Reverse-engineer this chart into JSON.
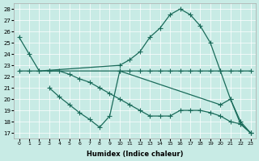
{
  "bg_color": "#c8ebe5",
  "line_color": "#1a6b5a",
  "xlabel": "Humidex (Indice chaleur)",
  "yticks": [
    17,
    18,
    19,
    20,
    21,
    22,
    23,
    24,
    25,
    26,
    27,
    28
  ],
  "xticks": [
    0,
    1,
    2,
    3,
    4,
    5,
    6,
    7,
    8,
    9,
    10,
    11,
    12,
    13,
    14,
    15,
    16,
    17,
    18,
    19,
    20,
    21,
    22,
    23
  ],
  "xlim": [
    -0.5,
    23.5
  ],
  "ylim": [
    16.5,
    28.5
  ],
  "line1_x": [
    0,
    1,
    2,
    10,
    11,
    12,
    13,
    14,
    15,
    16,
    17,
    18,
    19,
    20,
    21,
    22,
    23
  ],
  "line1_y": [
    25.5,
    24.0,
    22.5,
    23.0,
    23.5,
    24.2,
    25.5,
    26.3,
    27.5,
    28.0,
    27.5,
    26.5,
    25.0,
    22.5,
    22.5,
    22.5,
    22.5
  ],
  "line2_x": [
    0,
    1,
    2,
    3,
    10,
    11,
    12,
    13,
    14,
    15,
    16,
    17,
    18,
    19,
    20,
    21,
    22,
    23
  ],
  "line2_y": [
    22.5,
    22.5,
    22.5,
    22.5,
    22.5,
    22.5,
    22.5,
    22.5,
    22.5,
    22.5,
    22.5,
    22.5,
    22.5,
    22.5,
    22.5,
    20.0,
    18.0,
    17.0
  ],
  "line3_x": [
    3,
    4,
    5,
    6,
    7,
    8,
    9,
    10,
    20,
    21,
    22,
    23
  ],
  "line3_y": [
    21.0,
    20.2,
    19.5,
    18.8,
    18.2,
    17.5,
    18.5,
    22.5,
    19.5,
    20.0,
    17.8,
    17.0
  ],
  "line4_x": [
    3,
    4,
    5,
    6,
    7,
    8,
    9,
    10,
    11,
    12,
    13,
    14,
    15,
    16,
    17,
    18,
    19,
    20,
    21,
    22,
    23
  ],
  "line4_y": [
    22.5,
    22.5,
    22.2,
    21.8,
    21.5,
    21.0,
    20.5,
    20.0,
    19.5,
    19.0,
    18.5,
    18.5,
    18.5,
    19.0,
    19.0,
    19.0,
    18.8,
    18.5,
    18.0,
    17.8,
    17.0
  ]
}
